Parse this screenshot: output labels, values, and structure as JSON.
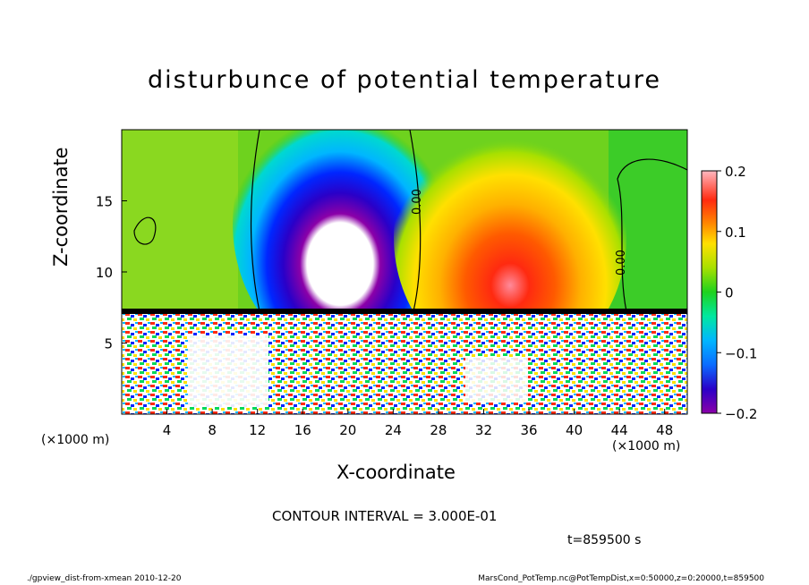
{
  "chart_data": {
    "type": "heatmap",
    "title": "disturbunce of potential temperature",
    "xlabel": "X-coordinate",
    "ylabel": "Z-coordinate",
    "x_unit": "(×1000 m)",
    "y_unit": "(×1000 m)",
    "xlim": [
      0,
      50
    ],
    "ylim": [
      0,
      20
    ],
    "x_ticks": [
      4,
      8,
      12,
      16,
      20,
      24,
      28,
      32,
      36,
      40,
      44,
      48
    ],
    "y_ticks": [
      5,
      10,
      15
    ],
    "colorbar": {
      "range": [
        -0.2,
        0.2
      ],
      "tick_labels": [
        "0.2",
        "0.1",
        "0",
        "−0.1",
        "−0.2"
      ],
      "colors": [
        "#8b00a8",
        "#2a00c8",
        "#0026ff",
        "#0a6cff",
        "#00b6ff",
        "#00d8d0",
        "#00e8a0",
        "#00d85a",
        "#1ed21e",
        "#6ed21e",
        "#a8e000",
        "#d6ec00",
        "#ffe000",
        "#ffb000",
        "#ff8a00",
        "#ff5a00",
        "#ff2a10",
        "#ff3a3a",
        "#ff7a8a",
        "#ffb8c0"
      ]
    },
    "contour_labels": [
      "0.00",
      "0.00"
    ],
    "contour_interval": "CONTOUR INTERVAL = 3.000E-01",
    "time_label": "t=859500 s",
    "grid": false
  },
  "footer": {
    "left": "./gpview_dist-from-xmean 2010-12-20",
    "right": "MarsCond_PotTemp.nc@PotTempDist,x=0:50000,z=0:20000,t=859500"
  }
}
